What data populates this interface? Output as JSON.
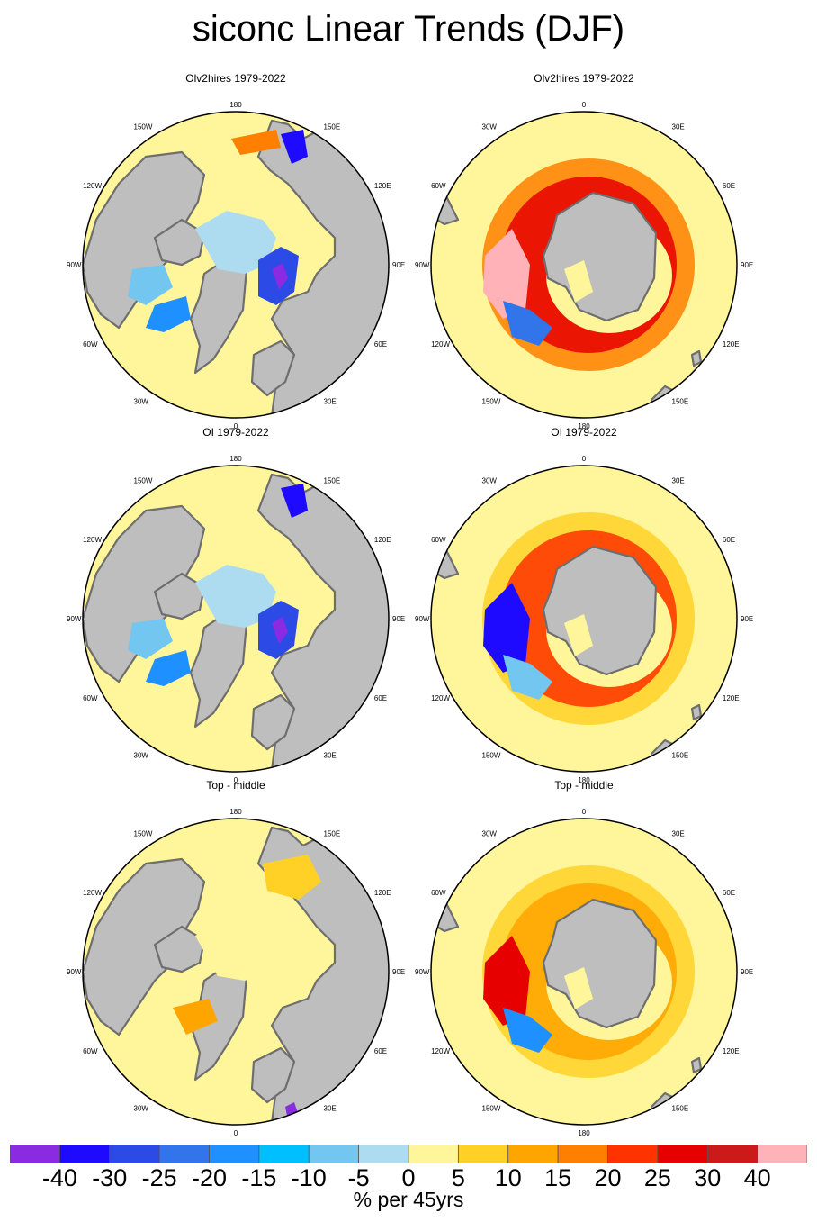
{
  "title": "siconc Linear Trends (DJF)",
  "panels": [
    {
      "title": "Olv2hires 1979-2022",
      "hemisphere": "north",
      "labels": {
        "top": "180",
        "bottom": "0",
        "left": "90W",
        "right": "90E",
        "top_left": "150W",
        "top_right": "150E",
        "upper_left": "120W",
        "upper_right": "120E",
        "lower_left": "60W",
        "lower_right": "60E",
        "bottom_left": "30W",
        "bottom_right": "30E"
      }
    },
    {
      "title": "Olv2hires 1979-2022",
      "hemisphere": "south",
      "labels": {
        "top": "0",
        "bottom": "180",
        "left": "90W",
        "right": "90E",
        "top_left": "30W",
        "top_right": "30E",
        "upper_left": "60W",
        "upper_right": "60E",
        "lower_left": "120W",
        "lower_right": "120E",
        "bottom_left": "150W",
        "bottom_right": "150E"
      }
    },
    {
      "title": "OI 1979-2022",
      "hemisphere": "north",
      "labels": {
        "top": "180",
        "bottom": "0",
        "left": "90W",
        "right": "90E",
        "top_left": "150W",
        "top_right": "150E",
        "upper_left": "120W",
        "upper_right": "120E",
        "lower_left": "60W",
        "lower_right": "60E",
        "bottom_left": "30W",
        "bottom_right": "30E"
      }
    },
    {
      "title": "OI 1979-2022",
      "hemisphere": "south",
      "labels": {
        "top": "0",
        "bottom": "180",
        "left": "90W",
        "right": "90E",
        "top_left": "30W",
        "top_right": "30E",
        "upper_left": "60W",
        "upper_right": "60E",
        "lower_left": "120W",
        "lower_right": "120E",
        "bottom_left": "150W",
        "bottom_right": "150E"
      }
    },
    {
      "title": "Top - middle",
      "hemisphere": "north",
      "labels": {
        "top": "180",
        "bottom": "0",
        "left": "90W",
        "right": "90E",
        "top_left": "150W",
        "top_right": "150E",
        "upper_left": "120W",
        "upper_right": "120E",
        "lower_left": "60W",
        "lower_right": "60E",
        "bottom_left": "30W",
        "bottom_right": "30E"
      }
    },
    {
      "title": "Top - middle",
      "hemisphere": "south",
      "labels": {
        "top": "0",
        "bottom": "180",
        "left": "90W",
        "right": "90E",
        "top_left": "30W",
        "top_right": "30E",
        "upper_left": "60W",
        "upper_right": "60E",
        "lower_left": "120W",
        "lower_right": "120E",
        "bottom_left": "150W",
        "bottom_right": "150E"
      }
    }
  ],
  "colorbar": {
    "colors": [
      "#8a2be2",
      "#1e0aff",
      "#2b4ae6",
      "#3274ea",
      "#1e90ff",
      "#00bfff",
      "#72c6f0",
      "#addcf0",
      "#fff59a",
      "#ffd127",
      "#ffa500",
      "#ff7f00",
      "#ff3300",
      "#e60000",
      "#cc1a1a",
      "#ffb3b8"
    ],
    "tick_labels": [
      "-40",
      "-30",
      "-25",
      "-20",
      "-15",
      "-10",
      "-5",
      "0",
      "5",
      "10",
      "15",
      "20",
      "25",
      "30",
      "40"
    ],
    "units": "% per 45yrs"
  },
  "colors": {
    "ocean": "#fff59a",
    "land": "#bebebe",
    "coast": "#6e6e6e"
  }
}
